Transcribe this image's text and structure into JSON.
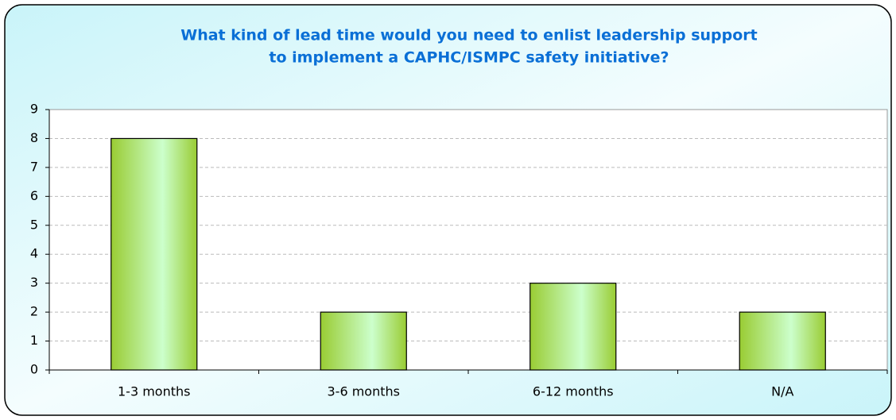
{
  "chart_data": {
    "type": "bar",
    "title": [
      "What kind of lead time would you need to enlist leadership support",
      "to implement a CAPHC/ISMPC safety initiative?"
    ],
    "categories": [
      "1-3 months",
      "3-6 months",
      "6-12 months",
      "N/A"
    ],
    "values": [
      8,
      2,
      3,
      2
    ],
    "color": "#99cc33",
    "ylim": [
      0,
      9
    ],
    "yticks": [
      0,
      1,
      2,
      3,
      4,
      5,
      6,
      7,
      8,
      9
    ],
    "grid": true
  }
}
